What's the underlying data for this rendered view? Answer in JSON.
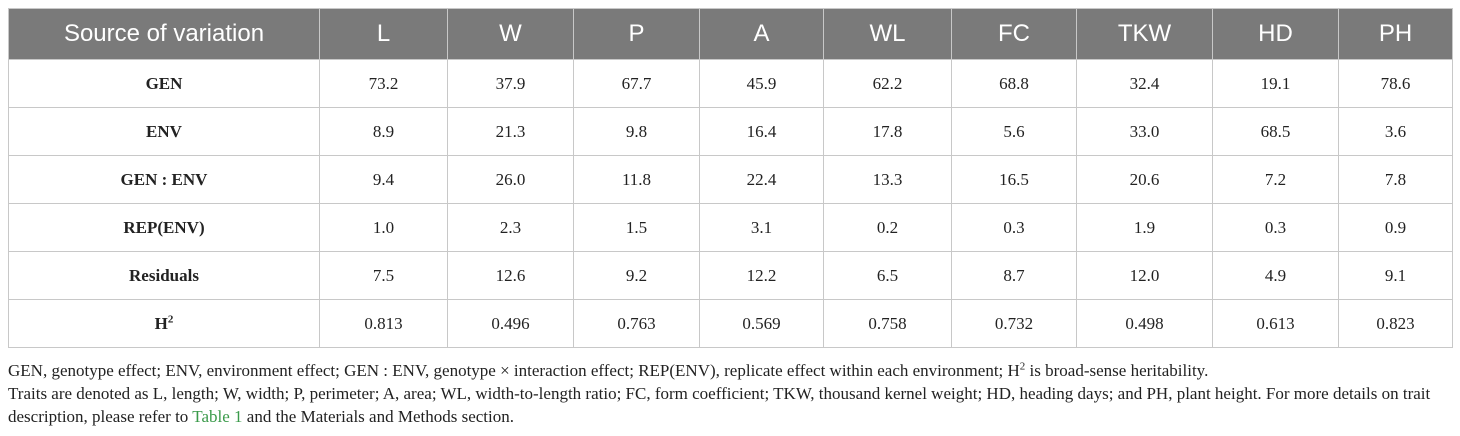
{
  "table": {
    "headers": [
      "Source of variation",
      "L",
      "W",
      "P",
      "A",
      "WL",
      "FC",
      "TKW",
      "HD",
      "PH"
    ],
    "rows": [
      {
        "label": "GEN",
        "sup": "",
        "values": [
          "73.2",
          "37.9",
          "67.7",
          "45.9",
          "62.2",
          "68.8",
          "32.4",
          "19.1",
          "78.6"
        ]
      },
      {
        "label": "ENV",
        "sup": "",
        "values": [
          "8.9",
          "21.3",
          "9.8",
          "16.4",
          "17.8",
          "5.6",
          "33.0",
          "68.5",
          "3.6"
        ]
      },
      {
        "label": "GEN : ENV",
        "sup": "",
        "values": [
          "9.4",
          "26.0",
          "11.8",
          "22.4",
          "13.3",
          "16.5",
          "20.6",
          "7.2",
          "7.8"
        ]
      },
      {
        "label": "REP(ENV)",
        "sup": "",
        "values": [
          "1.0",
          "2.3",
          "1.5",
          "3.1",
          "0.2",
          "0.3",
          "1.9",
          "0.3",
          "0.9"
        ]
      },
      {
        "label": "Residuals",
        "sup": "",
        "values": [
          "7.5",
          "12.6",
          "9.2",
          "12.2",
          "6.5",
          "8.7",
          "12.0",
          "4.9",
          "9.1"
        ]
      },
      {
        "label": "H",
        "sup": "2",
        "values": [
          "0.813",
          "0.496",
          "0.763",
          "0.569",
          "0.758",
          "0.732",
          "0.498",
          "0.613",
          "0.823"
        ]
      }
    ]
  },
  "notes": {
    "line1_a": "GEN, genotype effect; ENV, environment effect; GEN : ENV, genotype × interaction effect; REP(ENV), replicate effect within each environment; H",
    "line1_sup": "2",
    "line1_b": " is broad-sense heritability.",
    "line2_a": "Traits are denoted as L, length; W, width; P, perimeter; A, area; WL, width-to-length ratio; FC, form coefficient; TKW, thousand kernel weight; HD, heading days; and PH, plant height. For more details on trait description, please refer to ",
    "line2_link": "Table 1",
    "line2_b": " and the Materials and Methods section."
  },
  "colors": {
    "header_bg": "#7a7a7a",
    "link": "#3a9a4a"
  }
}
